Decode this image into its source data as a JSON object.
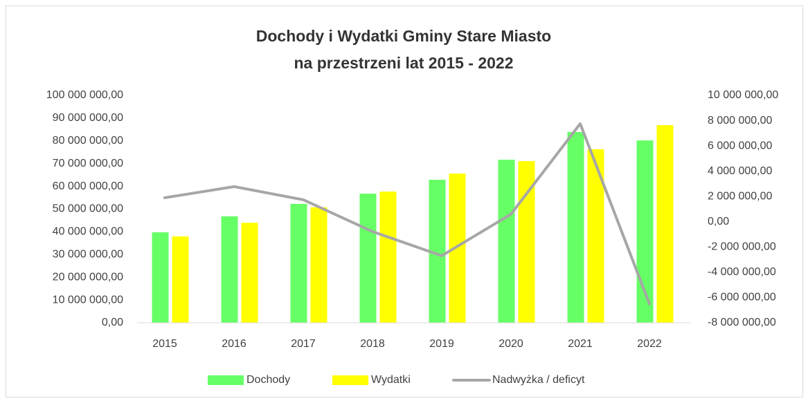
{
  "chart_data": {
    "type": "bar_line",
    "title": [
      "Dochody i Wydatki Gminy Stare Miasto",
      "na przestrzeni lat 2015 - 2022"
    ],
    "categories": [
      "2015",
      "2016",
      "2017",
      "2018",
      "2019",
      "2020",
      "2021",
      "2022"
    ],
    "series": [
      {
        "name": "Dochody",
        "color": "#66ff66",
        "type": "bar",
        "values": [
          39800000,
          46800000,
          52300000,
          56800000,
          62900000,
          71700000,
          83900000,
          80200000
        ]
      },
      {
        "name": "Wydatki",
        "color": "#ffff00",
        "type": "bar",
        "values": [
          38000000,
          44000000,
          50800000,
          57700000,
          65600000,
          71100000,
          76300000,
          86900000
        ]
      },
      {
        "name": "Nadwyżka / deficyt",
        "color": "#a6a6a6",
        "type": "line",
        "axis": "y2",
        "values": [
          1900000,
          2780000,
          1740000,
          -780000,
          -2690000,
          600000,
          7760000,
          -6500000
        ]
      }
    ],
    "ylim": [
      0,
      100000000
    ],
    "yticks": [
      {
        "value": 0,
        "label": "0,00"
      },
      {
        "value": 10000000,
        "label": "10 000 000,00"
      },
      {
        "value": 20000000,
        "label": "20 000 000,00"
      },
      {
        "value": 30000000,
        "label": "30 000 000,00"
      },
      {
        "value": 40000000,
        "label": "40 000 000,00"
      },
      {
        "value": 50000000,
        "label": "50 000 000,00"
      },
      {
        "value": 60000000,
        "label": "60 000 000,00"
      },
      {
        "value": 70000000,
        "label": "70 000 000,00"
      },
      {
        "value": 80000000,
        "label": "80 000 000,00"
      },
      {
        "value": 90000000,
        "label": "90 000 000,00"
      },
      {
        "value": 100000000,
        "label": "100 000 000,00"
      }
    ],
    "y2lim": [
      -8000000,
      10000000
    ],
    "y2ticks": [
      {
        "value": -8000000,
        "label": "-8 000 000,00"
      },
      {
        "value": -6000000,
        "label": "-6 000 000,00"
      },
      {
        "value": -4000000,
        "label": "-4 000 000,00"
      },
      {
        "value": -2000000,
        "label": "-2 000 000,00"
      },
      {
        "value": 0,
        "label": "0,00"
      },
      {
        "value": 2000000,
        "label": "2 000 000,00"
      },
      {
        "value": 4000000,
        "label": "4 000 000,00"
      },
      {
        "value": 6000000,
        "label": "6 000 000,00"
      },
      {
        "value": 8000000,
        "label": "8 000 000,00"
      },
      {
        "value": 10000000,
        "label": "10 000 000,00"
      }
    ],
    "grid": false,
    "legend": "bottom"
  }
}
